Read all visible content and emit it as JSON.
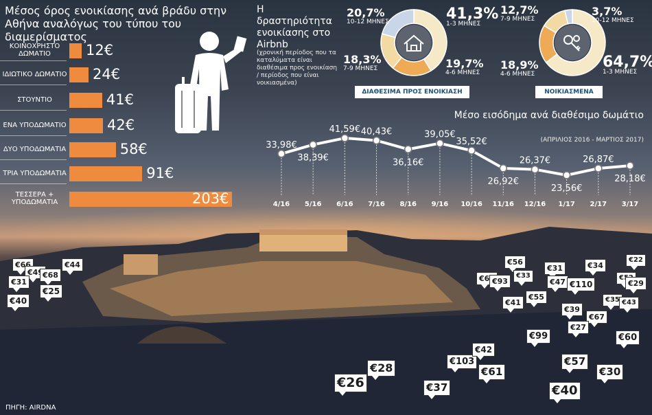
{
  "source": "ΠΗΓΗ: AIRDNA",
  "chart_data": [
    {
      "type": "bar",
      "title": "Μέσος όρος ενοικίασης ανά βράδυ στην Αθήνα αναλόγως του τύπου του διαμερίσματος",
      "categories": [
        "ΚΟΙΝΟΧΡΗΣΤΟ ΔΩΜΑΤΙΟ",
        "ΙΔΙΩΤΙΚΟ ΔΩΜΑΤΙΟ",
        "ΣΤΟΥΝΤΙΟ",
        "ΕΝΑ ΥΠΟΔΩΜΑΤΙΟ",
        "ΔΥΟ ΥΠΟΔΩΜΑΤΙΑ",
        "ΤΡΙΑ ΥΠΟΔΩΜΑΤΙΑ",
        "ΤΕΣΣΕΡΑ + ΥΠΟΔΩΜΑΤΙΑ"
      ],
      "values": [
        12,
        24,
        41,
        42,
        58,
        91,
        203
      ],
      "value_labels": [
        "12€",
        "24€",
        "41€",
        "42€",
        "58€",
        "91€",
        "203€"
      ],
      "bar_color": "#ef8b3e"
    },
    {
      "type": "pie",
      "title": "Η δραστηριότητα ενοικίασης στο Airbnb",
      "note": "(χρονική περίοδος που τα καταλύματα είναι διαθέσιμα προς ενοικίαση / περίοδος που είναι νοικιασμένα)",
      "name": "ΔΙΑΘΕΣΙΜΑ ΠΡΟΣ ΕΝΟΙΚΙΑΣΗ",
      "slices": [
        {
          "label": "1-3 ΜΗΝΕΣ",
          "value": 41.3,
          "text": "41,3%",
          "color": "#f6e9c8"
        },
        {
          "label": "4-6 ΜΗΝΕΣ",
          "value": 19.7,
          "text": "19,7%",
          "color": "#eeaa55"
        },
        {
          "label": "7-9 ΜΗΝΕΣ",
          "value": 18.3,
          "text": "18,3%",
          "color": "#f3d9a2"
        },
        {
          "label": "10-12 ΜΗΝΕΣ",
          "value": 20.7,
          "text": "20,7%",
          "color": "#c9d6e8"
        }
      ]
    },
    {
      "type": "pie",
      "name": "ΝΟΙΚΙΑΣΜΕΝΑ",
      "slices": [
        {
          "label": "1-3 ΜΗΝΕΣ",
          "value": 64.7,
          "text": "64,7%",
          "color": "#f6e9c8"
        },
        {
          "label": "4-6 ΜΗΝΕΣ",
          "value": 18.9,
          "text": "18,9%",
          "color": "#eeaa55"
        },
        {
          "label": "7-9 ΜΗΝΕΣ",
          "value": 12.7,
          "text": "12,7%",
          "color": "#f3d9a2"
        },
        {
          "label": "10-12 ΜΗΝΕΣ",
          "value": 3.7,
          "text": "3,7%",
          "color": "#c9d6e8"
        }
      ]
    },
    {
      "type": "line",
      "title": "Μέσο εισόδημα ανά διαθέσιμο δωμάτιο",
      "subtitle": "(ΑΠΡΙΛΙΟΣ 2016 - ΜΑΡΤΙΟΣ 2017)",
      "categories": [
        "4/16",
        "5/16",
        "6/16",
        "7/16",
        "8/16",
        "9/16",
        "10/16",
        "11/16",
        "12/16",
        "1/17",
        "2/17",
        "3/17"
      ],
      "values": [
        33.98,
        38.39,
        41.59,
        40.43,
        36.16,
        39.05,
        35.52,
        26.92,
        26.37,
        23.56,
        26.87,
        28.18
      ],
      "value_labels": [
        "33,98€",
        "38,39€",
        "41,59€",
        "40,43€",
        "36,16€",
        "39,05€",
        "35,52€",
        "26,92€",
        "26,37€",
        "23,56€",
        "26,87€",
        "28,18€"
      ]
    }
  ],
  "price_tags": [
    "€66",
    "€44",
    "€49",
    "€68",
    "€31",
    "€25",
    "€40",
    "€28",
    "€26",
    "€103",
    "€42",
    "€61",
    "€37",
    "€63",
    "€93",
    "€56",
    "€33",
    "€31",
    "€47",
    "€34",
    "€110",
    "€41",
    "€55",
    "€22",
    "€52",
    "€29",
    "€35",
    "€43",
    "€39",
    "€67",
    "€27",
    "€99",
    "€60",
    "€57",
    "€30",
    "€40"
  ]
}
